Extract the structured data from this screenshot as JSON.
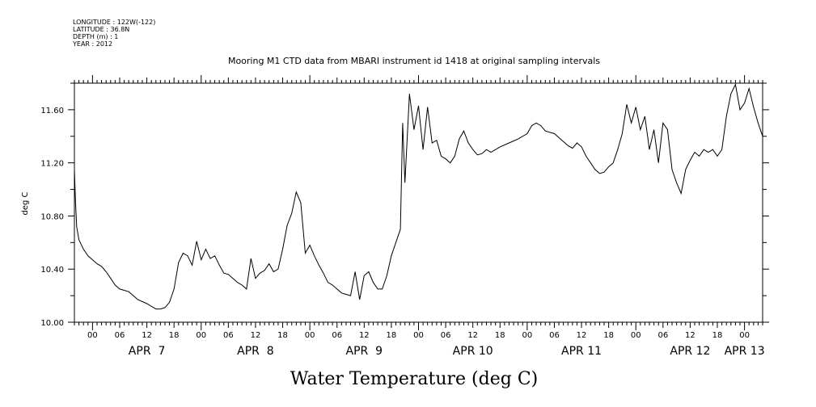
{
  "header": {
    "meta_lines": [
      "LONGITUDE : 122W(-122)",
      "LATITUDE : 36.8N",
      "DEPTH (m) : 1",
      "YEAR : 2012"
    ]
  },
  "chart_data": {
    "type": "line",
    "title": "Mooring M1 CTD data from MBARI instrument id 1418 at original sampling intervals",
    "xlabel": "Water Temperature (deg C)",
    "ylabel": "deg C",
    "xlim": [
      "2012-04-06T20:00",
      "2012-04-13T04:00"
    ],
    "ylim": [
      10.0,
      11.8
    ],
    "yticks": [
      10.0,
      10.4,
      10.8,
      11.2,
      11.6
    ],
    "ytick_labels": [
      "10.00",
      "10.40",
      "10.80",
      "11.20",
      "11.60"
    ],
    "xtick_labels": [
      {
        "t": "2012-04-07T00:00",
        "label": "00"
      },
      {
        "t": "2012-04-07T06:00",
        "label": "06"
      },
      {
        "t": "2012-04-07T12:00",
        "label": "12"
      },
      {
        "t": "2012-04-07T18:00",
        "label": "18"
      },
      {
        "t": "2012-04-08T00:00",
        "label": "00"
      },
      {
        "t": "2012-04-08T06:00",
        "label": "06"
      },
      {
        "t": "2012-04-08T12:00",
        "label": "12"
      },
      {
        "t": "2012-04-08T18:00",
        "label": "18"
      },
      {
        "t": "2012-04-09T00:00",
        "label": "00"
      },
      {
        "t": "2012-04-09T06:00",
        "label": "06"
      },
      {
        "t": "2012-04-09T12:00",
        "label": "12"
      },
      {
        "t": "2012-04-09T18:00",
        "label": "18"
      },
      {
        "t": "2012-04-10T00:00",
        "label": "00"
      },
      {
        "t": "2012-04-10T06:00",
        "label": "06"
      },
      {
        "t": "2012-04-10T12:00",
        "label": "12"
      },
      {
        "t": "2012-04-10T18:00",
        "label": "18"
      },
      {
        "t": "2012-04-11T00:00",
        "label": "00"
      },
      {
        "t": "2012-04-11T06:00",
        "label": "06"
      },
      {
        "t": "2012-04-11T12:00",
        "label": "12"
      },
      {
        "t": "2012-04-11T18:00",
        "label": "18"
      },
      {
        "t": "2012-04-12T00:00",
        "label": "00"
      },
      {
        "t": "2012-04-12T06:00",
        "label": "06"
      },
      {
        "t": "2012-04-12T12:00",
        "label": "12"
      },
      {
        "t": "2012-04-12T18:00",
        "label": "18"
      },
      {
        "t": "2012-04-13T00:00",
        "label": "00"
      }
    ],
    "day_labels": [
      {
        "t": "2012-04-07T12:00",
        "label": "APR  7"
      },
      {
        "t": "2012-04-08T12:00",
        "label": "APR  8"
      },
      {
        "t": "2012-04-09T12:00",
        "label": "APR  9"
      },
      {
        "t": "2012-04-10T12:00",
        "label": "APR 10"
      },
      {
        "t": "2012-04-11T12:00",
        "label": "APR 11"
      },
      {
        "t": "2012-04-12T12:00",
        "label": "APR 12"
      },
      {
        "t": "2012-04-13T00:00",
        "label": "APR 13"
      }
    ],
    "grid": false,
    "series": [
      {
        "points": [
          [
            "2012-04-06T20:00",
            11.15
          ],
          [
            "2012-04-06T20:15",
            10.9
          ],
          [
            "2012-04-06T20:30",
            10.72
          ],
          [
            "2012-04-06T21:00",
            10.62
          ],
          [
            "2012-04-06T22:00",
            10.55
          ],
          [
            "2012-04-06T23:00",
            10.5
          ],
          [
            "2012-04-07T00:00",
            10.47
          ],
          [
            "2012-04-07T01:00",
            10.44
          ],
          [
            "2012-04-07T02:00",
            10.42
          ],
          [
            "2012-04-07T03:00",
            10.38
          ],
          [
            "2012-04-07T04:00",
            10.33
          ],
          [
            "2012-04-07T05:00",
            10.28
          ],
          [
            "2012-04-07T06:00",
            10.25
          ],
          [
            "2012-04-07T08:00",
            10.23
          ],
          [
            "2012-04-07T10:00",
            10.17
          ],
          [
            "2012-04-07T12:00",
            10.14
          ],
          [
            "2012-04-07T13:00",
            10.12
          ],
          [
            "2012-04-07T14:00",
            10.1
          ],
          [
            "2012-04-07T15:00",
            10.1
          ],
          [
            "2012-04-07T16:00",
            10.11
          ],
          [
            "2012-04-07T17:00",
            10.15
          ],
          [
            "2012-04-07T18:00",
            10.25
          ],
          [
            "2012-04-07T19:00",
            10.45
          ],
          [
            "2012-04-07T20:00",
            10.52
          ],
          [
            "2012-04-07T21:00",
            10.5
          ],
          [
            "2012-04-07T22:00",
            10.43
          ],
          [
            "2012-04-07T23:00",
            10.61
          ],
          [
            "2012-04-08T00:00",
            10.47
          ],
          [
            "2012-04-08T01:00",
            10.55
          ],
          [
            "2012-04-08T02:00",
            10.48
          ],
          [
            "2012-04-08T03:00",
            10.5
          ],
          [
            "2012-04-08T04:00",
            10.43
          ],
          [
            "2012-04-08T05:00",
            10.37
          ],
          [
            "2012-04-08T06:00",
            10.36
          ],
          [
            "2012-04-08T07:00",
            10.33
          ],
          [
            "2012-04-08T08:00",
            10.3
          ],
          [
            "2012-04-08T09:00",
            10.28
          ],
          [
            "2012-04-08T10:00",
            10.25
          ],
          [
            "2012-04-08T11:00",
            10.48
          ],
          [
            "2012-04-08T12:00",
            10.33
          ],
          [
            "2012-04-08T13:00",
            10.37
          ],
          [
            "2012-04-08T14:00",
            10.39
          ],
          [
            "2012-04-08T15:00",
            10.44
          ],
          [
            "2012-04-08T16:00",
            10.38
          ],
          [
            "2012-04-08T17:00",
            10.4
          ],
          [
            "2012-04-08T18:00",
            10.55
          ],
          [
            "2012-04-08T19:00",
            10.73
          ],
          [
            "2012-04-08T20:00",
            10.82
          ],
          [
            "2012-04-08T21:00",
            10.98
          ],
          [
            "2012-04-08T22:00",
            10.9
          ],
          [
            "2012-04-08T23:00",
            10.52
          ],
          [
            "2012-04-09T00:00",
            10.58
          ],
          [
            "2012-04-09T01:00",
            10.5
          ],
          [
            "2012-04-09T02:00",
            10.43
          ],
          [
            "2012-04-09T03:00",
            10.37
          ],
          [
            "2012-04-09T04:00",
            10.3
          ],
          [
            "2012-04-09T05:00",
            10.28
          ],
          [
            "2012-04-09T06:00",
            10.25
          ],
          [
            "2012-04-09T07:00",
            10.22
          ],
          [
            "2012-04-09T08:00",
            10.21
          ],
          [
            "2012-04-09T09:00",
            10.2
          ],
          [
            "2012-04-09T10:00",
            10.38
          ],
          [
            "2012-04-09T11:00",
            10.17
          ],
          [
            "2012-04-09T12:00",
            10.35
          ],
          [
            "2012-04-09T13:00",
            10.38
          ],
          [
            "2012-04-09T14:00",
            10.3
          ],
          [
            "2012-04-09T15:00",
            10.25
          ],
          [
            "2012-04-09T16:00",
            10.25
          ],
          [
            "2012-04-09T17:00",
            10.35
          ],
          [
            "2012-04-09T18:00",
            10.5
          ],
          [
            "2012-04-09T19:00",
            10.6
          ],
          [
            "2012-04-09T20:00",
            10.7
          ],
          [
            "2012-04-09T20:30",
            11.5
          ],
          [
            "2012-04-09T21:00",
            11.05
          ],
          [
            "2012-04-09T22:00",
            11.72
          ],
          [
            "2012-04-09T23:00",
            11.45
          ],
          [
            "2012-04-10T00:00",
            11.63
          ],
          [
            "2012-04-10T01:00",
            11.3
          ],
          [
            "2012-04-10T02:00",
            11.62
          ],
          [
            "2012-04-10T03:00",
            11.35
          ],
          [
            "2012-04-10T04:00",
            11.37
          ],
          [
            "2012-04-10T05:00",
            11.25
          ],
          [
            "2012-04-10T06:00",
            11.23
          ],
          [
            "2012-04-10T07:00",
            11.2
          ],
          [
            "2012-04-10T08:00",
            11.25
          ],
          [
            "2012-04-10T09:00",
            11.38
          ],
          [
            "2012-04-10T10:00",
            11.44
          ],
          [
            "2012-04-10T11:00",
            11.35
          ],
          [
            "2012-04-10T12:00",
            11.3
          ],
          [
            "2012-04-10T13:00",
            11.26
          ],
          [
            "2012-04-10T14:00",
            11.27
          ],
          [
            "2012-04-10T15:00",
            11.3
          ],
          [
            "2012-04-10T16:00",
            11.28
          ],
          [
            "2012-04-10T18:00",
            11.32
          ],
          [
            "2012-04-10T20:00",
            11.35
          ],
          [
            "2012-04-10T22:00",
            11.38
          ],
          [
            "2012-04-11T00:00",
            11.42
          ],
          [
            "2012-04-11T01:00",
            11.48
          ],
          [
            "2012-04-11T02:00",
            11.5
          ],
          [
            "2012-04-11T03:00",
            11.48
          ],
          [
            "2012-04-11T04:00",
            11.44
          ],
          [
            "2012-04-11T06:00",
            11.42
          ],
          [
            "2012-04-11T08:00",
            11.36
          ],
          [
            "2012-04-11T09:00",
            11.33
          ],
          [
            "2012-04-11T10:00",
            11.31
          ],
          [
            "2012-04-11T11:00",
            11.35
          ],
          [
            "2012-04-11T12:00",
            11.32
          ],
          [
            "2012-04-11T13:00",
            11.25
          ],
          [
            "2012-04-11T14:00",
            11.2
          ],
          [
            "2012-04-11T15:00",
            11.15
          ],
          [
            "2012-04-11T16:00",
            11.12
          ],
          [
            "2012-04-11T17:00",
            11.13
          ],
          [
            "2012-04-11T18:00",
            11.17
          ],
          [
            "2012-04-11T19:00",
            11.2
          ],
          [
            "2012-04-11T20:00",
            11.3
          ],
          [
            "2012-04-11T21:00",
            11.42
          ],
          [
            "2012-04-11T22:00",
            11.64
          ],
          [
            "2012-04-11T23:00",
            11.5
          ],
          [
            "2012-04-12T00:00",
            11.62
          ],
          [
            "2012-04-12T01:00",
            11.45
          ],
          [
            "2012-04-12T02:00",
            11.55
          ],
          [
            "2012-04-12T03:00",
            11.3
          ],
          [
            "2012-04-12T04:00",
            11.45
          ],
          [
            "2012-04-12T05:00",
            11.2
          ],
          [
            "2012-04-12T06:00",
            11.5
          ],
          [
            "2012-04-12T07:00",
            11.45
          ],
          [
            "2012-04-12T08:00",
            11.15
          ],
          [
            "2012-04-12T09:00",
            11.05
          ],
          [
            "2012-04-12T10:00",
            10.97
          ],
          [
            "2012-04-12T11:00",
            11.15
          ],
          [
            "2012-04-12T12:00",
            11.22
          ],
          [
            "2012-04-12T13:00",
            11.28
          ],
          [
            "2012-04-12T14:00",
            11.25
          ],
          [
            "2012-04-12T15:00",
            11.3
          ],
          [
            "2012-04-12T16:00",
            11.28
          ],
          [
            "2012-04-12T17:00",
            11.3
          ],
          [
            "2012-04-12T18:00",
            11.25
          ],
          [
            "2012-04-12T19:00",
            11.3
          ],
          [
            "2012-04-12T20:00",
            11.55
          ],
          [
            "2012-04-12T21:00",
            11.72
          ],
          [
            "2012-04-12T22:00",
            11.79
          ],
          [
            "2012-04-12T23:00",
            11.6
          ],
          [
            "2012-04-13T00:00",
            11.65
          ],
          [
            "2012-04-13T01:00",
            11.76
          ],
          [
            "2012-04-13T02:00",
            11.62
          ],
          [
            "2012-04-13T03:00",
            11.5
          ],
          [
            "2012-04-13T04:00",
            11.4
          ]
        ]
      }
    ]
  }
}
